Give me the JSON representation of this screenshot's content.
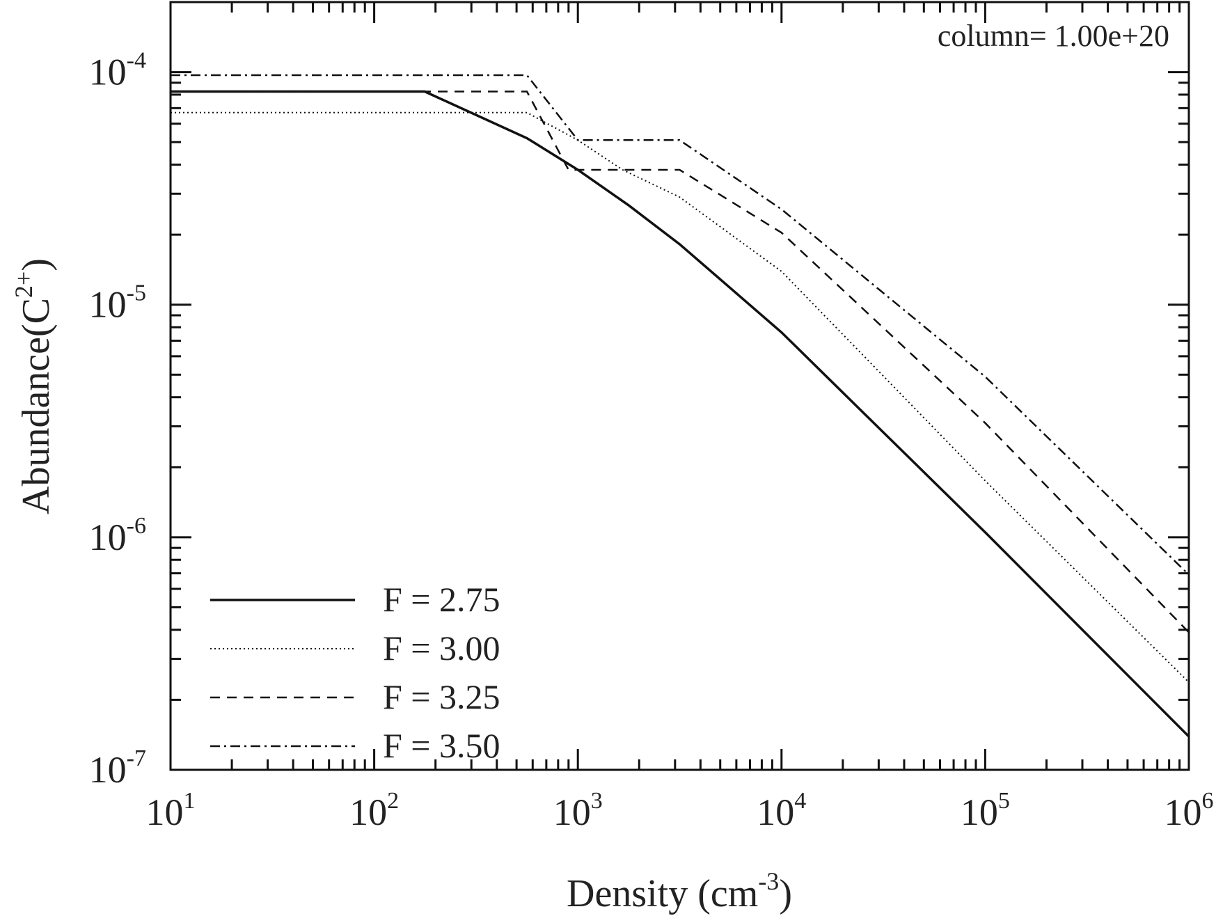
{
  "chart_data": {
    "type": "line",
    "xlabel": "Density (cm",
    "xlabel_sup": "-3",
    "xlabel_end": ")",
    "ylabel": "Abundance(C",
    "ylabel_sup": "2+",
    "ylabel_end": ")",
    "x_scale": "log",
    "y_scale": "log",
    "xlim": [
      10,
      1000000
    ],
    "ylim": [
      1e-07,
      0.0002
    ],
    "x_ticks": [
      {
        "base": "10",
        "exp": "1",
        "v": 10
      },
      {
        "base": "10",
        "exp": "2",
        "v": 100
      },
      {
        "base": "10",
        "exp": "3",
        "v": 1000
      },
      {
        "base": "10",
        "exp": "4",
        "v": 10000
      },
      {
        "base": "10",
        "exp": "5",
        "v": 100000
      },
      {
        "base": "10",
        "exp": "6",
        "v": 1000000
      }
    ],
    "y_ticks": [
      {
        "base": "10",
        "exp": "-4",
        "v": 0.0001
      },
      {
        "base": "10",
        "exp": "-5",
        "v": 1e-05
      },
      {
        "base": "10",
        "exp": "-6",
        "v": 1e-06
      },
      {
        "base": "10",
        "exp": "-7",
        "v": 1e-07
      }
    ],
    "annotation": "column= 1.00e+20",
    "grid": false,
    "legend_position": "bottom-left",
    "series": [
      {
        "name": "F = 2.75",
        "style": "solid",
        "x": [
          10,
          177,
          562,
          1000,
          1780,
          3160,
          10000,
          100000,
          1000000
        ],
        "y": [
          8.25e-05,
          8.25e-05,
          5.2e-05,
          3.8e-05,
          2.67e-05,
          1.82e-05,
          7.6e-06,
          1.05e-06,
          1.39e-07
        ]
      },
      {
        "name": "F = 3.00",
        "style": "dotted",
        "x": [
          10,
          562,
          1000,
          1660,
          3160,
          10000,
          100000,
          1000000
        ],
        "y": [
          6.7e-05,
          6.7e-05,
          5.1e-05,
          3.8e-05,
          2.9e-05,
          1.39e-05,
          1.75e-06,
          2.38e-07
        ]
      },
      {
        "name": "F = 3.25",
        "style": "dashed",
        "x": [
          10,
          562,
          900,
          3160,
          10000,
          100000,
          1000000
        ],
        "y": [
          8.25e-05,
          8.25e-05,
          3.8e-05,
          3.8e-05,
          2.04e-05,
          3.1e-06,
          3.9e-07
        ]
      },
      {
        "name": "F = 3.50",
        "style": "dashdot",
        "x": [
          10,
          562,
          1000,
          3160,
          10000,
          100000,
          1000000
        ],
        "y": [
          9.7e-05,
          9.7e-05,
          5.1e-05,
          5.1e-05,
          2.57e-05,
          4.9e-06,
          6.9e-07
        ]
      }
    ]
  }
}
